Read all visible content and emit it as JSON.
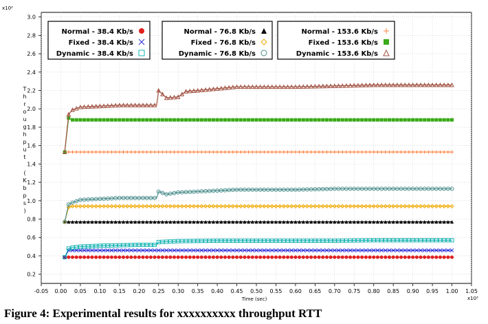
{
  "caption": "Figure 4: Experimental results for xxxxxxxxxx throughput RTT",
  "chart_data": {
    "type": "line",
    "xlabel": "Time (sec)",
    "ylabel": "Throughput (Kbps)",
    "x_exponent": "x10³",
    "y_exponent": "x10²",
    "xlim": [
      -0.05,
      1.05
    ],
    "ylim": [
      0.1,
      3.05
    ],
    "xticks": [
      "-0.05",
      "0.00",
      "0.05",
      "0.10",
      "0.15",
      "0.20",
      "0.25",
      "0.30",
      "0.35",
      "0.40",
      "0.45",
      "0.50",
      "0.55",
      "0.60",
      "0.65",
      "0.70",
      "0.75",
      "0.80",
      "0.85",
      "0.90",
      "0.95",
      "1.00",
      "1.05"
    ],
    "yticks": [
      "0.2",
      "0.4",
      "0.6",
      "0.8",
      "1.0",
      "1.2",
      "1.4",
      "1.6",
      "1.8",
      "2.0",
      "2.2",
      "2.4",
      "2.6",
      "2.8",
      "3.0"
    ],
    "grid": true,
    "series": [
      {
        "name": "Normal - 38.4 Kb/s",
        "color": "#e02020",
        "marker": "circle",
        "x": [
          0.01,
          1.0
        ],
        "y": [
          0.385,
          0.385
        ]
      },
      {
        "name": "Fixed - 38.4 Kb/s",
        "color": "#2a2ad8",
        "marker": "x",
        "x": [
          0.01,
          0.02,
          1.0
        ],
        "y": [
          0.385,
          0.46,
          0.46
        ]
      },
      {
        "name": "Dynamic - 38.4 Kb/s",
        "color": "#17b3b3",
        "marker": "square",
        "x": [
          0.01,
          0.02,
          0.03,
          0.05,
          0.1,
          0.2,
          0.245,
          0.25,
          0.3,
          0.4,
          0.5,
          0.6,
          0.7,
          0.8,
          0.9,
          1.0
        ],
        "y": [
          0.385,
          0.48,
          0.49,
          0.5,
          0.51,
          0.52,
          0.52,
          0.55,
          0.56,
          0.565,
          0.565,
          0.565,
          0.565,
          0.57,
          0.57,
          0.57
        ]
      },
      {
        "name": "Normal - 76.8 Kb/s",
        "color": "#000000",
        "marker": "triangle-filled",
        "x": [
          0.01,
          1.0
        ],
        "y": [
          0.77,
          0.77
        ]
      },
      {
        "name": "Fixed - 76.8 Kb/s",
        "color": "#f0a800",
        "marker": "diamond",
        "x": [
          0.01,
          0.02,
          0.03,
          1.0
        ],
        "y": [
          0.77,
          0.93,
          0.94,
          0.94
        ]
      },
      {
        "name": "Dynamic - 76.8 Kb/s",
        "color": "#4a8c8c",
        "marker": "circle-open",
        "x": [
          0.01,
          0.02,
          0.03,
          0.05,
          0.1,
          0.15,
          0.2,
          0.245,
          0.25,
          0.27,
          0.3,
          0.35,
          0.4,
          0.45,
          0.5,
          0.6,
          0.7,
          0.8,
          0.9,
          1.0
        ],
        "y": [
          0.77,
          0.96,
          0.98,
          1.01,
          1.02,
          1.03,
          1.03,
          1.03,
          1.1,
          1.07,
          1.09,
          1.1,
          1.11,
          1.12,
          1.12,
          1.12,
          1.13,
          1.13,
          1.13,
          1.13
        ]
      },
      {
        "name": "Normal - 153.6 Kb/s",
        "color": "#ff8040",
        "marker": "plus",
        "x": [
          0.01,
          1.0
        ],
        "y": [
          1.53,
          1.53
        ]
      },
      {
        "name": "Fixed - 153.6 Kb/s",
        "color": "#3aaa1a",
        "marker": "square-filled",
        "x": [
          0.01,
          0.02,
          0.03,
          1.0
        ],
        "y": [
          1.53,
          1.9,
          1.88,
          1.88
        ]
      },
      {
        "name": "Dynamic - 153.6 Kb/s",
        "color": "#a05040",
        "marker": "triangle-open",
        "x": [
          0.01,
          0.02,
          0.03,
          0.05,
          0.1,
          0.15,
          0.2,
          0.245,
          0.25,
          0.27,
          0.3,
          0.32,
          0.35,
          0.4,
          0.45,
          0.5,
          0.6,
          0.7,
          0.8,
          0.9,
          1.0
        ],
        "y": [
          1.53,
          1.94,
          1.99,
          2.02,
          2.03,
          2.04,
          2.04,
          2.04,
          2.2,
          2.12,
          2.13,
          2.19,
          2.2,
          2.22,
          2.24,
          2.24,
          2.24,
          2.25,
          2.26,
          2.26,
          2.26
        ]
      }
    ]
  }
}
